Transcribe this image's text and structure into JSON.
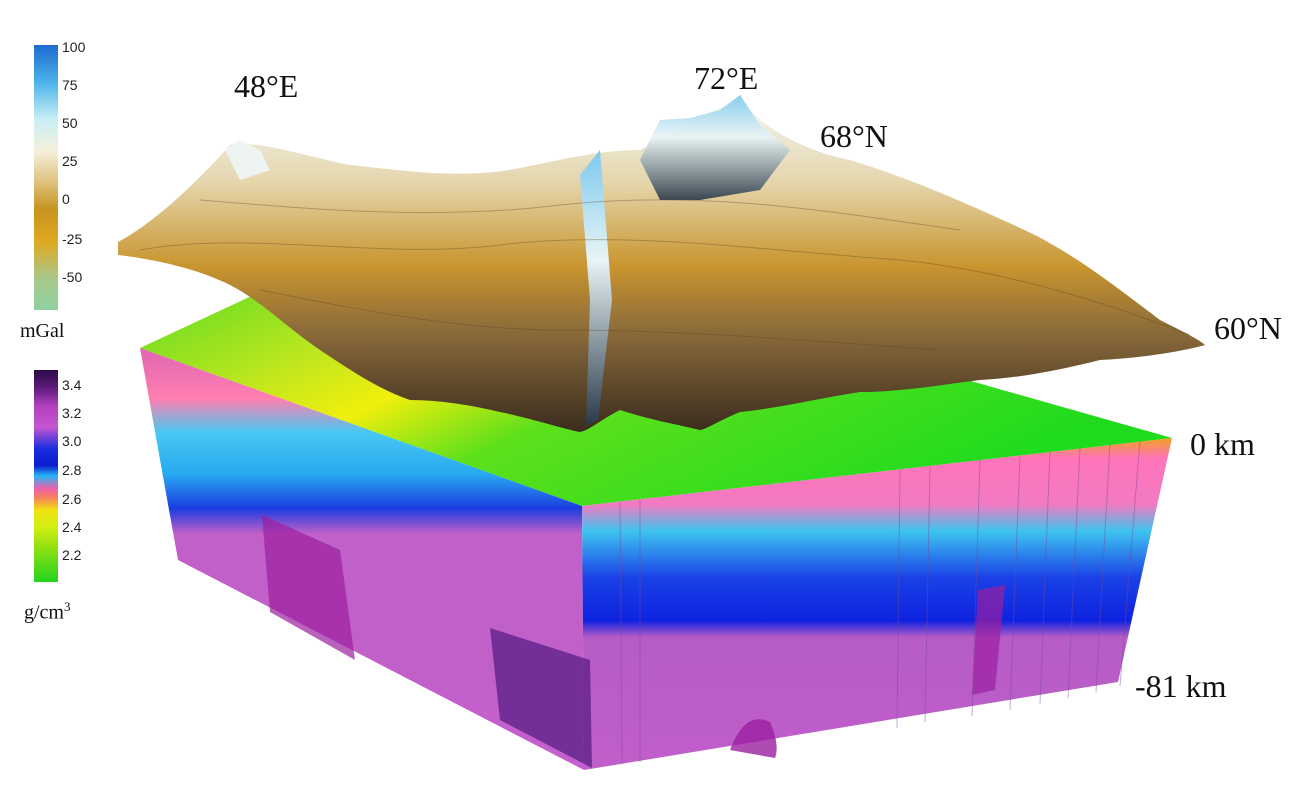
{
  "corner_labels": {
    "lon_west": "48°E",
    "lon_east": "72°E",
    "lat_north": "68°N",
    "lat_south": "60°N",
    "depth_top": "0 km",
    "depth_bottom": "-81 km"
  },
  "gravity_colorbar": {
    "unit": "mGal",
    "ticks": [
      "100",
      "75",
      "50",
      "25",
      "0",
      "-25",
      "-50"
    ],
    "colors": [
      "#1f6fd1",
      "#53b7e8",
      "#e8f6f7",
      "#efe1bf",
      "#cf9f3a",
      "#e8ac1f",
      "#78c98b"
    ]
  },
  "density_colorbar": {
    "unit_base": "g/cm",
    "unit_exp": "3",
    "ticks": [
      "3.4",
      "3.2",
      "3.0",
      "2.8",
      "2.6",
      "2.4",
      "2.2"
    ],
    "colors": [
      "#3a0f56",
      "#bb3fc4",
      "#1230ea",
      "#f06aa8",
      "#e7f20a",
      "#9de014",
      "#1fd61f"
    ]
  }
}
